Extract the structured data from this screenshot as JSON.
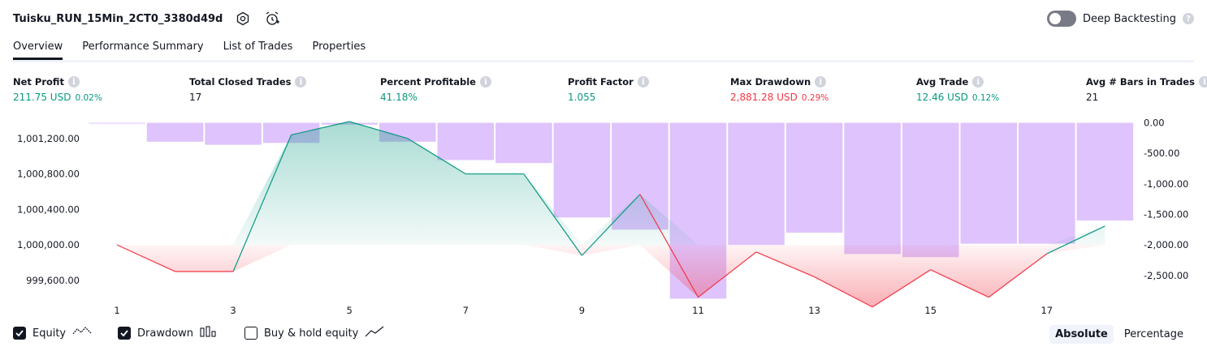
{
  "header": {
    "title": "Tuisku_RUN_15Min_2CT0_3380d49d",
    "deep_backtesting_label": "Deep Backtesting",
    "deep_backtesting_on": false
  },
  "tabs": [
    {
      "label": "Overview",
      "active": true
    },
    {
      "label": "Performance Summary",
      "active": false
    },
    {
      "label": "List of Trades",
      "active": false
    },
    {
      "label": "Properties",
      "active": false
    }
  ],
  "metrics": {
    "net_profit": {
      "label": "Net Profit",
      "value": "211.75 USD",
      "pct": "0.02%"
    },
    "total_closed_trades": {
      "label": "Total Closed Trades",
      "value": "17"
    },
    "percent_profitable": {
      "label": "Percent Profitable",
      "value": "41.18%"
    },
    "profit_factor": {
      "label": "Profit Factor",
      "value": "1.055"
    },
    "max_drawdown": {
      "label": "Max Drawdown",
      "value": "2,881.28 USD",
      "pct": "0.29%"
    },
    "avg_trade": {
      "label": "Avg Trade",
      "value": "12.46 USD",
      "pct": "0.12%"
    },
    "avg_bars": {
      "label": "Avg # Bars in Trades",
      "value": "21"
    }
  },
  "legend": {
    "equity_label": "Equity",
    "drawdown_label": "Drawdown",
    "buy_hold_label": "Buy & hold equity",
    "equity_checked": true,
    "drawdown_checked": true,
    "buy_hold_checked": false
  },
  "scale_toggle": {
    "absolute_label": "Absolute",
    "percentage_label": "Percentage",
    "selected": "Absolute"
  },
  "colors": {
    "green": "#089981",
    "red": "#f23645",
    "drawdown_bar": "#d9b8fb",
    "text": "#131722"
  },
  "chart_data": {
    "type": "line",
    "x_ticks": [
      "1",
      "3",
      "5",
      "7",
      "9",
      "11",
      "13",
      "15",
      "17"
    ],
    "x": [
      1,
      2,
      3,
      4,
      5,
      6,
      7,
      8,
      9,
      10,
      11,
      12,
      13,
      14,
      15,
      16,
      17,
      18
    ],
    "equity_baseline": 1000000,
    "left_axis": {
      "ticks": [
        "1,001,200.00",
        "1,000,800.00",
        "1,000,400.00",
        "1,000,000.00",
        "999,600.00"
      ],
      "range": [
        999380,
        1001390
      ]
    },
    "right_axis": {
      "ticks": [
        "0.00",
        "-500.00",
        "-1,000.00",
        "-1,500.00",
        "-2,000.00",
        "-2,500.00"
      ],
      "range": [
        -2900,
        20
      ]
    },
    "series": [
      {
        "name": "Equity",
        "values": [
          1000000,
          999700,
          999700,
          1001240,
          1001390,
          1001200,
          1000800,
          1000800,
          999880,
          1000570,
          999410,
          999920,
          999640,
          999300,
          999720,
          999410,
          999900,
          1000212
        ]
      },
      {
        "name": "Drawdown",
        "values": [
          -10,
          -310,
          -360,
          -330,
          -30,
          -310,
          -610,
          -660,
          -1550,
          -1750,
          -2880,
          -2000,
          -1800,
          -2150,
          -2200,
          -1980,
          -1980,
          -1600
        ]
      }
    ]
  }
}
